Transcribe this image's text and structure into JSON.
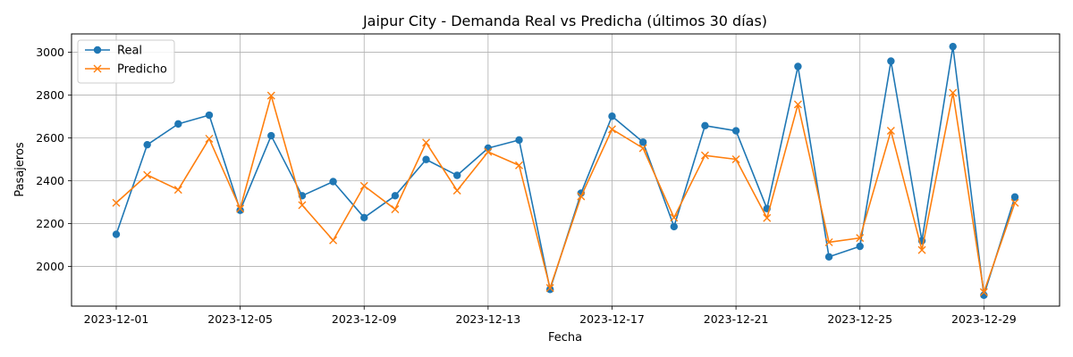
{
  "chart_data": {
    "type": "line",
    "title": "Jaipur City - Demanda Real vs Predicha (últimos 30 días)",
    "xlabel": "Fecha",
    "ylabel": "Pasajeros",
    "x": [
      "2023-12-01",
      "2023-12-02",
      "2023-12-03",
      "2023-12-04",
      "2023-12-05",
      "2023-12-06",
      "2023-12-07",
      "2023-12-08",
      "2023-12-09",
      "2023-12-10",
      "2023-12-11",
      "2023-12-12",
      "2023-12-13",
      "2023-12-14",
      "2023-12-15",
      "2023-12-16",
      "2023-12-17",
      "2023-12-18",
      "2023-12-19",
      "2023-12-20",
      "2023-12-21",
      "2023-12-22",
      "2023-12-23",
      "2023-12-24",
      "2023-12-25",
      "2023-12-26",
      "2023-12-27",
      "2023-12-28",
      "2023-12-29",
      "2023-12-30"
    ],
    "xticks": [
      "2023-12-01",
      "2023-12-05",
      "2023-12-09",
      "2023-12-13",
      "2023-12-17",
      "2023-12-21",
      "2023-12-25",
      "2023-12-29"
    ],
    "yticks": [
      2000,
      2200,
      2400,
      2600,
      2800,
      3000
    ],
    "ylim": [
      1815,
      3085
    ],
    "grid": true,
    "legend_position": "top-left",
    "series": [
      {
        "name": "Real",
        "color": "#1f77b4",
        "marker": "circle",
        "values": [
          2150,
          2568,
          2665,
          2706,
          2262,
          2610,
          2330,
          2396,
          2228,
          2330,
          2499,
          2425,
          2552,
          2590,
          1893,
          2342,
          2701,
          2580,
          2186,
          2657,
          2633,
          2270,
          2933,
          2045,
          2094,
          2958,
          2120,
          3026,
          1866,
          2324
        ]
      },
      {
        "name": "Predicho",
        "color": "#ff7f0e",
        "marker": "x",
        "values": [
          2297,
          2427,
          2358,
          2596,
          2270,
          2797,
          2286,
          2122,
          2376,
          2267,
          2578,
          2354,
          2535,
          2472,
          1900,
          2327,
          2640,
          2552,
          2228,
          2518,
          2500,
          2226,
          2756,
          2113,
          2133,
          2633,
          2077,
          2810,
          1880,
          2297
        ]
      }
    ]
  }
}
